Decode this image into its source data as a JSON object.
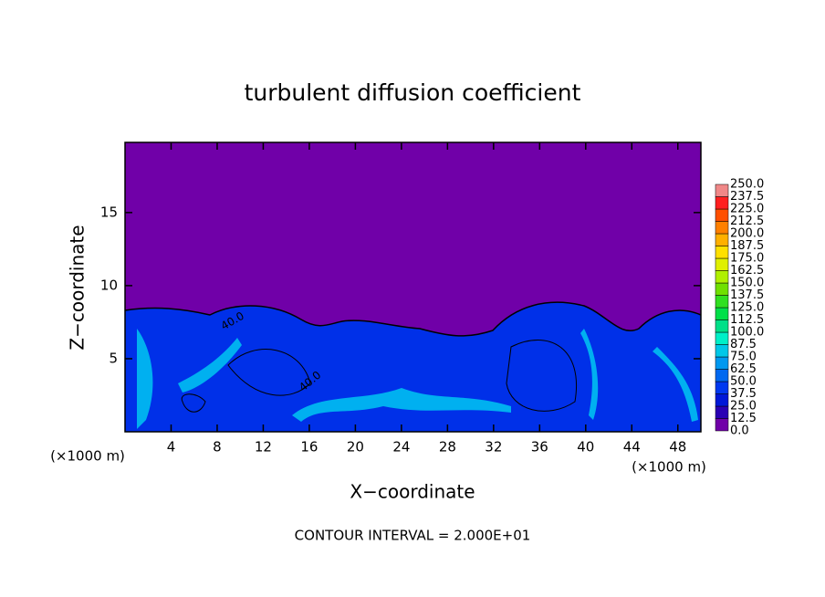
{
  "chart_data": {
    "type": "contour",
    "title": "turbulent diffusion coefficient",
    "xlabel": "X−coordinate",
    "ylabel": "Z−coordinate",
    "xunit": "(×1000 m)",
    "footer": "CONTOUR INTERVAL = 2.000E+01",
    "annotations": [
      "40.0",
      "40.0"
    ],
    "xlim": [
      0,
      50
    ],
    "xticks": [
      4,
      8,
      12,
      16,
      20,
      24,
      28,
      32,
      36,
      40,
      44,
      48
    ],
    "ylim": [
      0,
      19.8
    ],
    "yticks": [
      5,
      10,
      15
    ],
    "colorbar": {
      "levels": [
        {
          "value": 0,
          "label": "0.0"
        },
        {
          "value": 12.5,
          "label": "12.5"
        },
        {
          "value": 25,
          "label": "25.0"
        },
        {
          "value": 37.5,
          "label": "37.5"
        },
        {
          "value": 50,
          "label": "50.0"
        },
        {
          "value": 62.5,
          "label": "62.5"
        },
        {
          "value": 75,
          "label": "75.0"
        },
        {
          "value": 87.5,
          "label": "87.5"
        },
        {
          "value": 100,
          "label": "100.0"
        },
        {
          "value": 112.5,
          "label": "112.5"
        },
        {
          "value": 125,
          "label": "125.0"
        },
        {
          "value": 137.5,
          "label": "137.5"
        },
        {
          "value": 150,
          "label": "150.0"
        },
        {
          "value": 162.5,
          "label": "162.5"
        },
        {
          "value": 175,
          "label": "175.0"
        },
        {
          "value": 187.5,
          "label": "187.5"
        },
        {
          "value": 200,
          "label": "200.0"
        },
        {
          "value": 212.5,
          "label": "212.5"
        },
        {
          "value": 225,
          "label": "225.0"
        },
        {
          "value": 237.5,
          "label": "237.5"
        },
        {
          "value": 250,
          "label": "250.0"
        }
      ],
      "colors": [
        "#7000a8",
        "#2a00b4",
        "#0018d8",
        "#0038f0",
        "#0068f0",
        "#0098f0",
        "#00c8e8",
        "#00f0c8",
        "#00e088",
        "#00e048",
        "#30e020",
        "#70e000",
        "#b0f000",
        "#e0f000",
        "#ffe000",
        "#ffb000",
        "#ff8000",
        "#ff5000",
        "#ff2020",
        "#f08888"
      ]
    }
  }
}
